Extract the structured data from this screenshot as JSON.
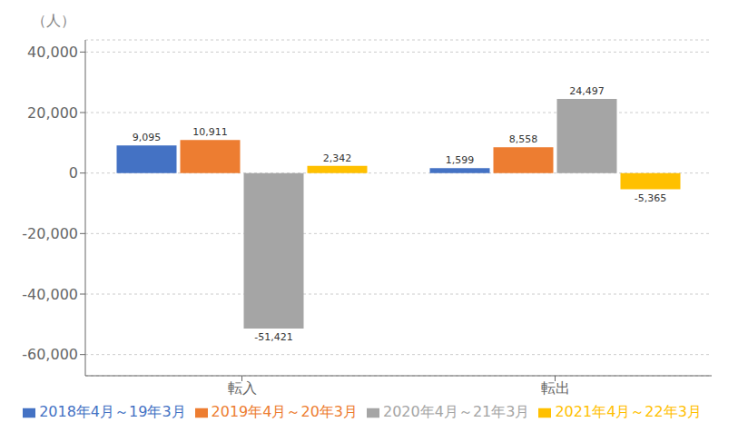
{
  "chart_data": {
    "type": "bar",
    "categories": [
      "転入",
      "転出"
    ],
    "series": [
      {
        "name": "2018年4月～19年3月",
        "color": "#4472C4",
        "values": [
          9095,
          1599
        ],
        "value_labels": [
          "9,095",
          "1,599"
        ]
      },
      {
        "name": "2019年4月～20年3月",
        "color": "#ED7D31",
        "values": [
          10911,
          8558
        ],
        "value_labels": [
          "10,911",
          "8,558"
        ]
      },
      {
        "name": "2020年4月～21年3月",
        "color": "#A5A5A5",
        "values": [
          -51421,
          24497
        ],
        "value_labels": [
          "-51,421",
          "24,497"
        ]
      },
      {
        "name": "2021年4月～22年3月",
        "color": "#FFC000",
        "values": [
          2342,
          -5365
        ],
        "value_labels": [
          "2,342",
          "-5,365"
        ]
      }
    ],
    "y_label": "（人）",
    "ylim": [
      -67000,
      44000
    ],
    "yticks": [
      {
        "value": -60000,
        "label": "-60,000"
      },
      {
        "value": -40000,
        "label": "-40,000"
      },
      {
        "value": -20000,
        "label": "-20,000"
      },
      0,
      {
        "value": 20000,
        "label": "20,000"
      },
      {
        "value": 40000,
        "label": "40,000"
      }
    ],
    "grid": true,
    "legend": "bottom",
    "data_labels": true
  }
}
